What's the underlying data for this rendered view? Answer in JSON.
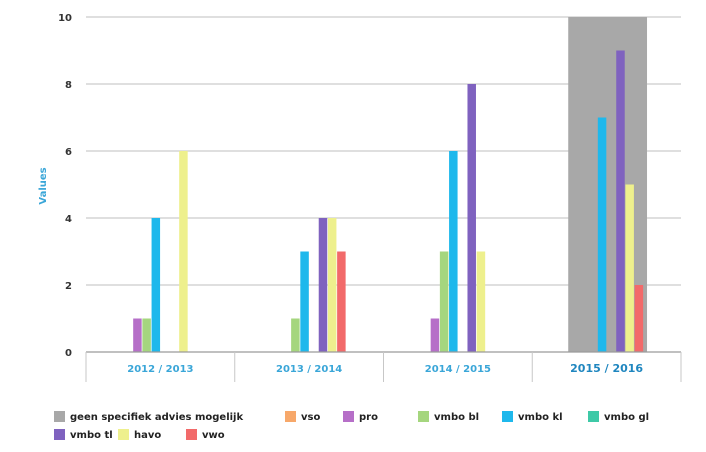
{
  "chart_data": {
    "type": "bar",
    "ylabel": "Values",
    "ylim": [
      0,
      10
    ],
    "yticks": [
      "0",
      "2",
      "4",
      "6",
      "8",
      "10"
    ],
    "categories": [
      "2012 / 2013",
      "2013 / 2014",
      "2014 / 2015",
      "2015 / 2016"
    ],
    "highlighted_category": "2015 / 2016",
    "grid": true,
    "legend_position": "bottom",
    "series": [
      {
        "name": "geen specifiek advies mogelijk",
        "color": "#a8a8a8",
        "values": [
          0,
          0,
          0,
          10
        ]
      },
      {
        "name": "vso",
        "color": "#f7a86a",
        "values": [
          0,
          0,
          0,
          0
        ]
      },
      {
        "name": "pro",
        "color": "#b66fc8",
        "values": [
          1,
          0,
          1,
          0
        ]
      },
      {
        "name": "vmbo bl",
        "color": "#a5d67e",
        "values": [
          1,
          1,
          3,
          0
        ]
      },
      {
        "name": "vmbo kl",
        "color": "#1eb8ec",
        "values": [
          4,
          3,
          6,
          7
        ]
      },
      {
        "name": "vmbo gl",
        "color": "#3ec9a7",
        "values": [
          0,
          0,
          0,
          0
        ]
      },
      {
        "name": "vmbo tl",
        "color": "#7f62bf",
        "values": [
          0,
          4,
          8,
          9
        ]
      },
      {
        "name": "havo",
        "color": "#eef08d",
        "values": [
          6,
          4,
          3,
          5
        ]
      },
      {
        "name": "vwo",
        "color": "#f26a6a",
        "values": [
          0,
          3,
          0,
          2
        ]
      }
    ]
  }
}
